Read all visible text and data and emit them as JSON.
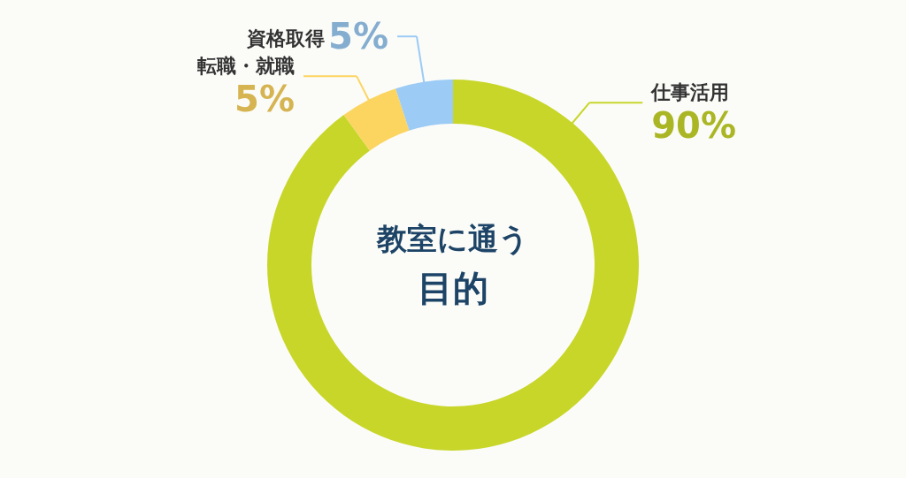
{
  "chart_data": {
    "type": "donut",
    "title": "教室に通う",
    "subtitle": "目的",
    "categories": [
      "仕事活用",
      "転職・就職",
      "資格取得"
    ],
    "values": [
      90,
      5,
      5
    ],
    "value_labels": [
      "90%",
      "5%",
      "5%"
    ],
    "colors": [
      "#c8d62a",
      "#fcd460",
      "#9ccbf5"
    ]
  }
}
